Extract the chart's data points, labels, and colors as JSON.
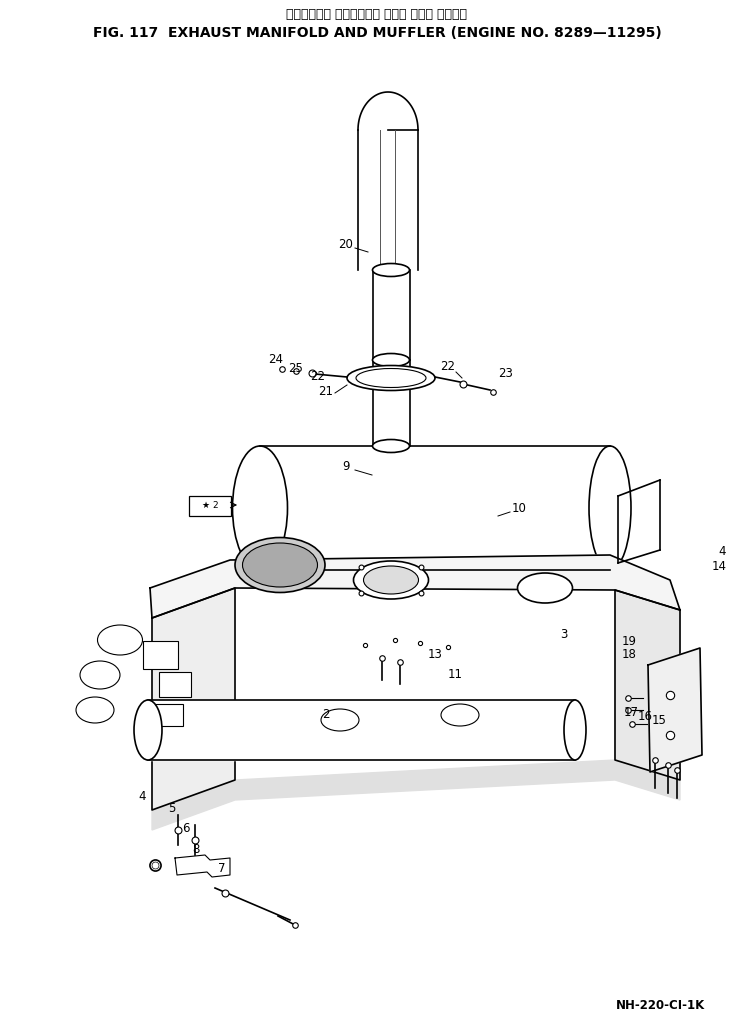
{
  "title_japanese": "エキゾースト マニホールド および マフラ 適用号機",
  "title_english": "FIG. 117  EXHAUST MANIFOLD AND MUFFLER (ENGINE NO. 8289—11295)",
  "footer": "NH-220-CI-1K",
  "bg_color": "#ffffff",
  "line_color": "#000000"
}
